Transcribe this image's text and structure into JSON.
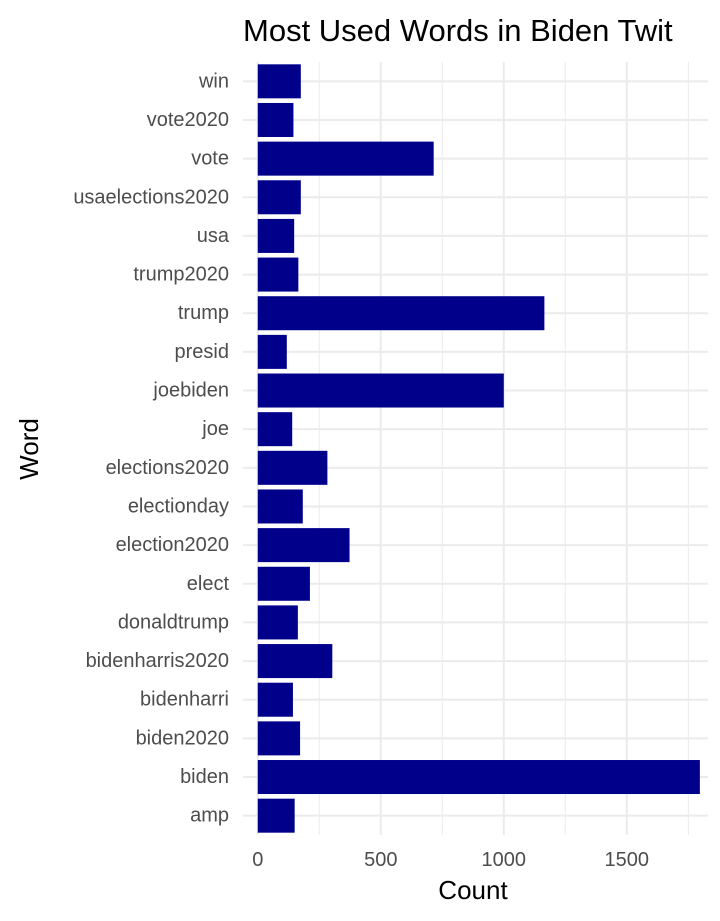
{
  "chart_data": {
    "type": "bar",
    "orientation": "horizontal",
    "title": "Most Used Words in Biden Twit",
    "xlabel": "Count",
    "ylabel": "Word",
    "categories": [
      "win",
      "vote2020",
      "vote",
      "usaelections2020",
      "usa",
      "trump2020",
      "trump",
      "presid",
      "joebiden",
      "joe",
      "elections2020",
      "electionday",
      "election2020",
      "elect",
      "donaldtrump",
      "bidenharris2020",
      "bidenharri",
      "biden2020",
      "biden",
      "amp"
    ],
    "values": [
      175,
      145,
      715,
      175,
      148,
      165,
      1165,
      118,
      1000,
      140,
      283,
      183,
      373,
      212,
      163,
      303,
      143,
      172,
      1797,
      150
    ],
    "xlim": [
      -60,
      1830
    ],
    "xticks": [
      0,
      500,
      1000,
      1500
    ],
    "grid": true,
    "bar_color": "#00008B",
    "grid_color": "#ebebeb"
  }
}
